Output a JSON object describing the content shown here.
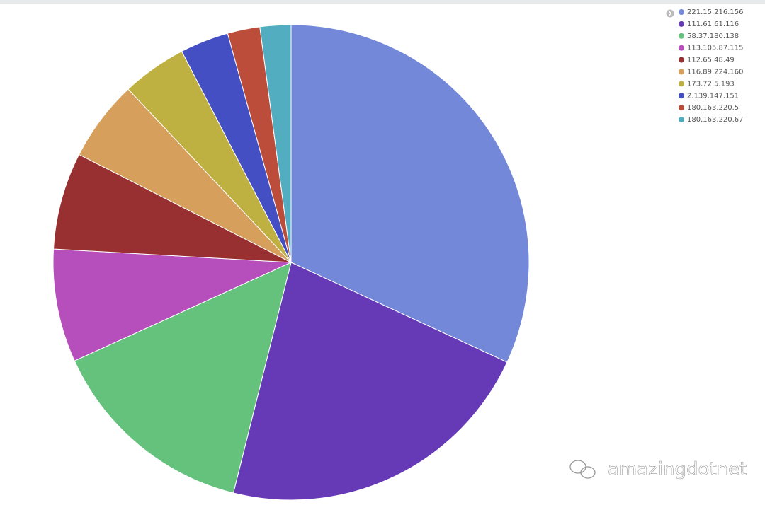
{
  "chart_data": {
    "type": "pie",
    "categories": [
      "221.15.216.156",
      "111.61.61.116",
      "58.37.180.138",
      "113.105.87.115",
      "112.65.48.49",
      "116.89.224.160",
      "173.72.5.193",
      "2.139.147.151",
      "180.163.220.5",
      "180.163.220.67"
    ],
    "values": [
      31.9,
      22.0,
      14.3,
      7.7,
      6.6,
      5.5,
      4.4,
      3.3,
      2.2,
      2.1
    ],
    "colors": [
      "#7388d9",
      "#6639b7",
      "#64c27c",
      "#b64fbc",
      "#983031",
      "#d6a05c",
      "#bfb042",
      "#434fc2",
      "#bb4d3a",
      "#52adc1"
    ],
    "legend": "top-right"
  },
  "watermark": "amazingdotnet"
}
